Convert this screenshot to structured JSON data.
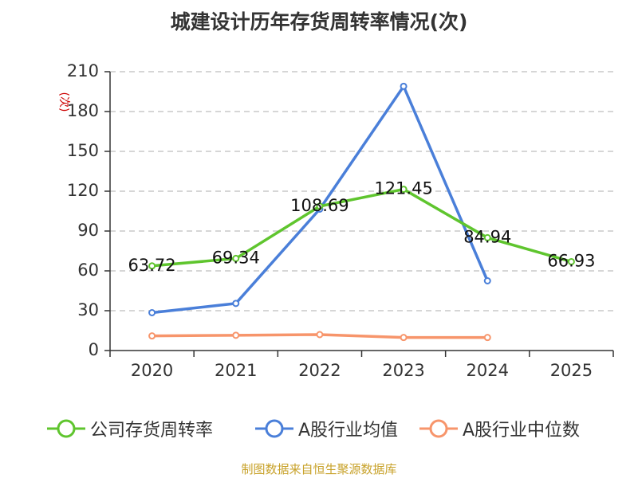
{
  "title": "城建设计历年存货周转率情况(次)",
  "footer": "制图数据来自恒生聚源数据库",
  "colors": {
    "company": "#5fc52e",
    "industry_avg": "#4a7fd9",
    "industry_median": "#f7956b",
    "grid": "#c8c8c8",
    "axis": "#333333",
    "unit": "#cc0000"
  },
  "chart_data": {
    "type": "line",
    "title": "城建设计历年存货周转率情况(次)",
    "ylabel": "(次)",
    "xlabel": "",
    "categories": [
      "2020",
      "2021",
      "2022",
      "2023",
      "2024",
      "2025"
    ],
    "ylim": [
      0,
      210
    ],
    "yticks": [
      0,
      30,
      60,
      90,
      120,
      150,
      180,
      210
    ],
    "grid": true,
    "legend_position": "bottom",
    "series": [
      {
        "name": "公司存货周转率",
        "color": "#5fc52e",
        "values": [
          63.72,
          69.34,
          108.69,
          121.45,
          84.94,
          66.93
        ],
        "labels": [
          "63.72",
          "69.34",
          "108.69",
          "121.45",
          "84.94",
          "66.93"
        ]
      },
      {
        "name": "A股行业均值",
        "color": "#4a7fd9",
        "values": [
          28.5,
          35.5,
          106.5,
          199.0,
          52.5,
          null
        ]
      },
      {
        "name": "A股行业中位数",
        "color": "#f7956b",
        "values": [
          11.0,
          11.5,
          12.0,
          9.8,
          9.8,
          null
        ]
      }
    ]
  }
}
